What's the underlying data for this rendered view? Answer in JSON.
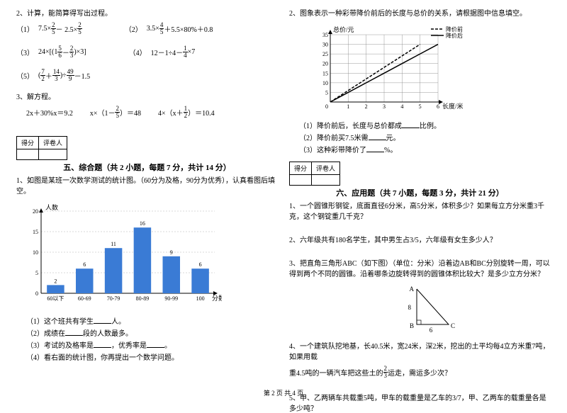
{
  "left": {
    "q2_title": "2、计算，能简算得写出过程。",
    "eq1_lbl": "（1）",
    "eq1": "7.5×",
    "eq1_f1_n": "2",
    "eq1_f1_d": "5",
    "eq1_mid": " － 2.5×",
    "eq1_f2_n": "2",
    "eq1_f2_d": "5",
    "eq2_lbl": "（2）",
    "eq2_a": "3.5×",
    "eq2_f_n": "4",
    "eq2_f_d": "5",
    "eq2_b": "＋5.5×80%＋0.8",
    "eq3_lbl": "（3）",
    "eq3_a": "24×",
    "eq3_bo": "[(",
    "eq3_mix": "1",
    "eq3_f1_n": "5",
    "eq3_f1_d": "6",
    "eq3_mid": "－",
    "eq3_f2_n": "2",
    "eq3_f2_d": "3",
    "eq3_bc": ")×3]",
    "eq4_lbl": "（4）",
    "eq4_a": "12－1÷4－",
    "eq4_f_n": "1",
    "eq4_f_d": "4",
    "eq4_b": "×7",
    "eq5_lbl": "（5）",
    "eq5_bo": "(",
    "eq5_f1_n": "7",
    "eq5_f1_d": "2",
    "eq5_mid": "＋",
    "eq5_f2_n": "14",
    "eq5_f2_d": "3",
    "eq5_bc": ")÷",
    "eq5_f3_n": "49",
    "eq5_f3_d": "9",
    "eq5_tail": "－1.5",
    "q3_title": "3、解方程。",
    "eq3a": "2x＋30%x＝9.2",
    "eq3b_a": "x×（1－",
    "eq3b_f_n": "2",
    "eq3b_f_d": "5",
    "eq3b_b": "）＝48",
    "eq3c_a": "4×（x＋",
    "eq3c_f_n": "1",
    "eq3c_f_d": "2",
    "eq3c_b": "）＝10.4",
    "score_l": "得分",
    "score_r": "评卷人",
    "sec5_title": "五、综合题（共 2 小题，每题 7 分，共计 14 分）",
    "q5_1": "1、如图是某班一次数学测试的统计图。（60分为及格，90分为优秀），认真看图后填空。",
    "chart": {
      "y_label": "人数",
      "x_label": "分数",
      "categories": [
        "60以下",
        "60-69",
        "70-79",
        "80-89",
        "90-99",
        "100"
      ],
      "values": [
        2,
        6,
        11,
        16,
        9,
        6
      ],
      "bar_color": "#3a7bd5",
      "y_ticks": [
        0,
        5,
        10,
        15,
        20
      ],
      "ymax": 20,
      "bg": "#ffffff",
      "grid_color": "#808080",
      "bar_width": 0.6,
      "tick_fontsize": 8,
      "label_fontsize": 9,
      "value_fontsize": 8
    },
    "q5_1_1": "（1）这个班共有学生",
    "q5_1_1b": "人。",
    "q5_1_2": "（2）成绩在",
    "q5_1_2b": "段的人数最多。",
    "q5_1_3a": "（3）考试的及格率是",
    "q5_1_3b": "，优秀率是",
    "q5_1_3c": "。",
    "q5_1_4": "（4）看右面的统计图，你再提出一个数学问题。"
  },
  "right": {
    "q2_title": "2、图象表示一种彩带降价前后的长度与总价的关系，请根据图中信息填空。",
    "legend_before": "降价前",
    "legend_after": "降价后",
    "chart": {
      "y_label": "总价/元",
      "x_label": "长度/米",
      "x_ticks": [
        0,
        1,
        2,
        3,
        4,
        5,
        6
      ],
      "y_ticks": [
        0,
        5,
        10,
        15,
        20,
        25,
        30,
        35
      ],
      "ymax": 35,
      "grid_color": "#808080",
      "line_before_pts": [
        [
          0,
          0
        ],
        [
          1,
          6
        ],
        [
          2,
          12
        ],
        [
          3,
          18
        ],
        [
          4,
          24
        ],
        [
          5,
          30
        ]
      ],
      "line_after_pts": [
        [
          0,
          0
        ],
        [
          1,
          5
        ],
        [
          2,
          10
        ],
        [
          3,
          15
        ],
        [
          4,
          20
        ],
        [
          5,
          25
        ],
        [
          6,
          30
        ]
      ],
      "tick_fontsize": 8,
      "label_fontsize": 9
    },
    "q2_1a": "（1）降价前后，长度与总价都成",
    "q2_1b": "比例。",
    "q2_2a": "（2）降价前买7.5米需",
    "q2_2b": "元。",
    "q2_3a": "（3）这种彩带降价了",
    "q2_3b": "%。",
    "sec6_title": "六、应用题（共 7 小题，每题 3 分，共计 21 分）",
    "q6_1": "1、一个圆锥形钢锭，底面直径6分米，高5分米，体积多少？如果每立方分米重3千克，这个钢锭重几千克？",
    "q6_2": "2、六年级共有180名学生，其中男生占3/5，六年级有女生多少人？",
    "q6_3": "3、把直角三角形ABC（如下图）（单位：分米）沿着边AB和BC分别旋转一周，可以得到两个不同的圆锥。沿着哪条边旋转得到的圆锥体积比较大？是多少立方分米？",
    "tri_labels": {
      "A": "A",
      "B": "B",
      "C": "C",
      "ab": "8",
      "bc": "6"
    },
    "q6_4a": "4、一个建筑队挖地基，长40.5米，宽24米，深2米，挖出的土平均每4立方米重7吨，如果用载",
    "q6_4b_a": "重4.5吨的一辆汽车把这些土的",
    "q6_4_f_n": "2",
    "q6_4_f_d": "3",
    "q6_4b_b": "运走，需运多少次？",
    "q6_5": "5、甲、乙两辆车共载重5吨，甲车的载重量是乙车的3/7，甲、乙两车的载重量各是多少吨？"
  },
  "footer": "第 2 页 共 4 页"
}
